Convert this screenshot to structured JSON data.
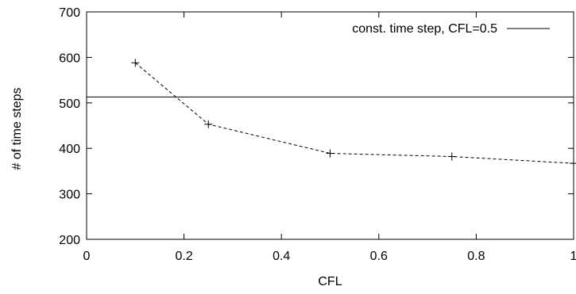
{
  "chart_data": {
    "type": "line",
    "xlabel": "CFL",
    "ylabel": "# of time steps",
    "xlim": [
      0,
      1
    ],
    "ylim": [
      200,
      700
    ],
    "xticks": [
      0,
      0.2,
      0.4,
      0.6,
      0.8,
      1
    ],
    "xtick_labels": [
      "0",
      "0.2",
      "0.4",
      "0.6",
      "0.8",
      "1"
    ],
    "yticks": [
      200,
      300,
      400,
      500,
      600,
      700
    ],
    "ytick_labels": [
      "200",
      "300",
      "400",
      "500",
      "600",
      "700"
    ],
    "grid": false,
    "legend_position": "top-right",
    "series": [
      {
        "name": "",
        "style": "dashed",
        "marker": "plus",
        "color": "#000000",
        "x": [
          0.1,
          0.25,
          0.5,
          0.75,
          1.0
        ],
        "y": [
          588,
          453,
          389,
          382,
          367
        ]
      },
      {
        "name": "const. time step, CFL=0.5",
        "style": "solid",
        "marker": "none",
        "color": "#000000",
        "constant_y": 513
      }
    ]
  }
}
